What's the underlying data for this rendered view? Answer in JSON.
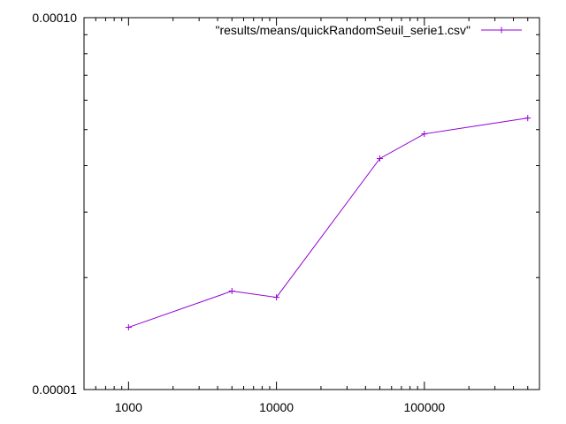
{
  "chart_data": {
    "type": "line",
    "x_scale": "log",
    "y_scale": "log",
    "xlim": [
      500,
      600000
    ],
    "ylim": [
      1e-05,
      0.0001
    ],
    "x_ticks": [
      {
        "value": 1000,
        "label": "1000"
      },
      {
        "value": 10000,
        "label": "10000"
      },
      {
        "value": 100000,
        "label": "100000"
      }
    ],
    "y_ticks": [
      {
        "value": 1e-05,
        "label": "0.00001"
      },
      {
        "value": 0.0001,
        "label": "0.00010"
      }
    ],
    "grid": false,
    "legend_position": "top-right",
    "series": [
      {
        "name": "\"results/means/quickRandomSeuil_serie1.csv\"",
        "color": "#9400d3",
        "marker": "plus",
        "x": [
          1000,
          5000,
          10000,
          50000,
          100000,
          500000
        ],
        "y": [
          1.47e-05,
          1.84e-05,
          1.77e-05,
          4.18e-05,
          4.87e-05,
          5.37e-05
        ]
      }
    ]
  }
}
